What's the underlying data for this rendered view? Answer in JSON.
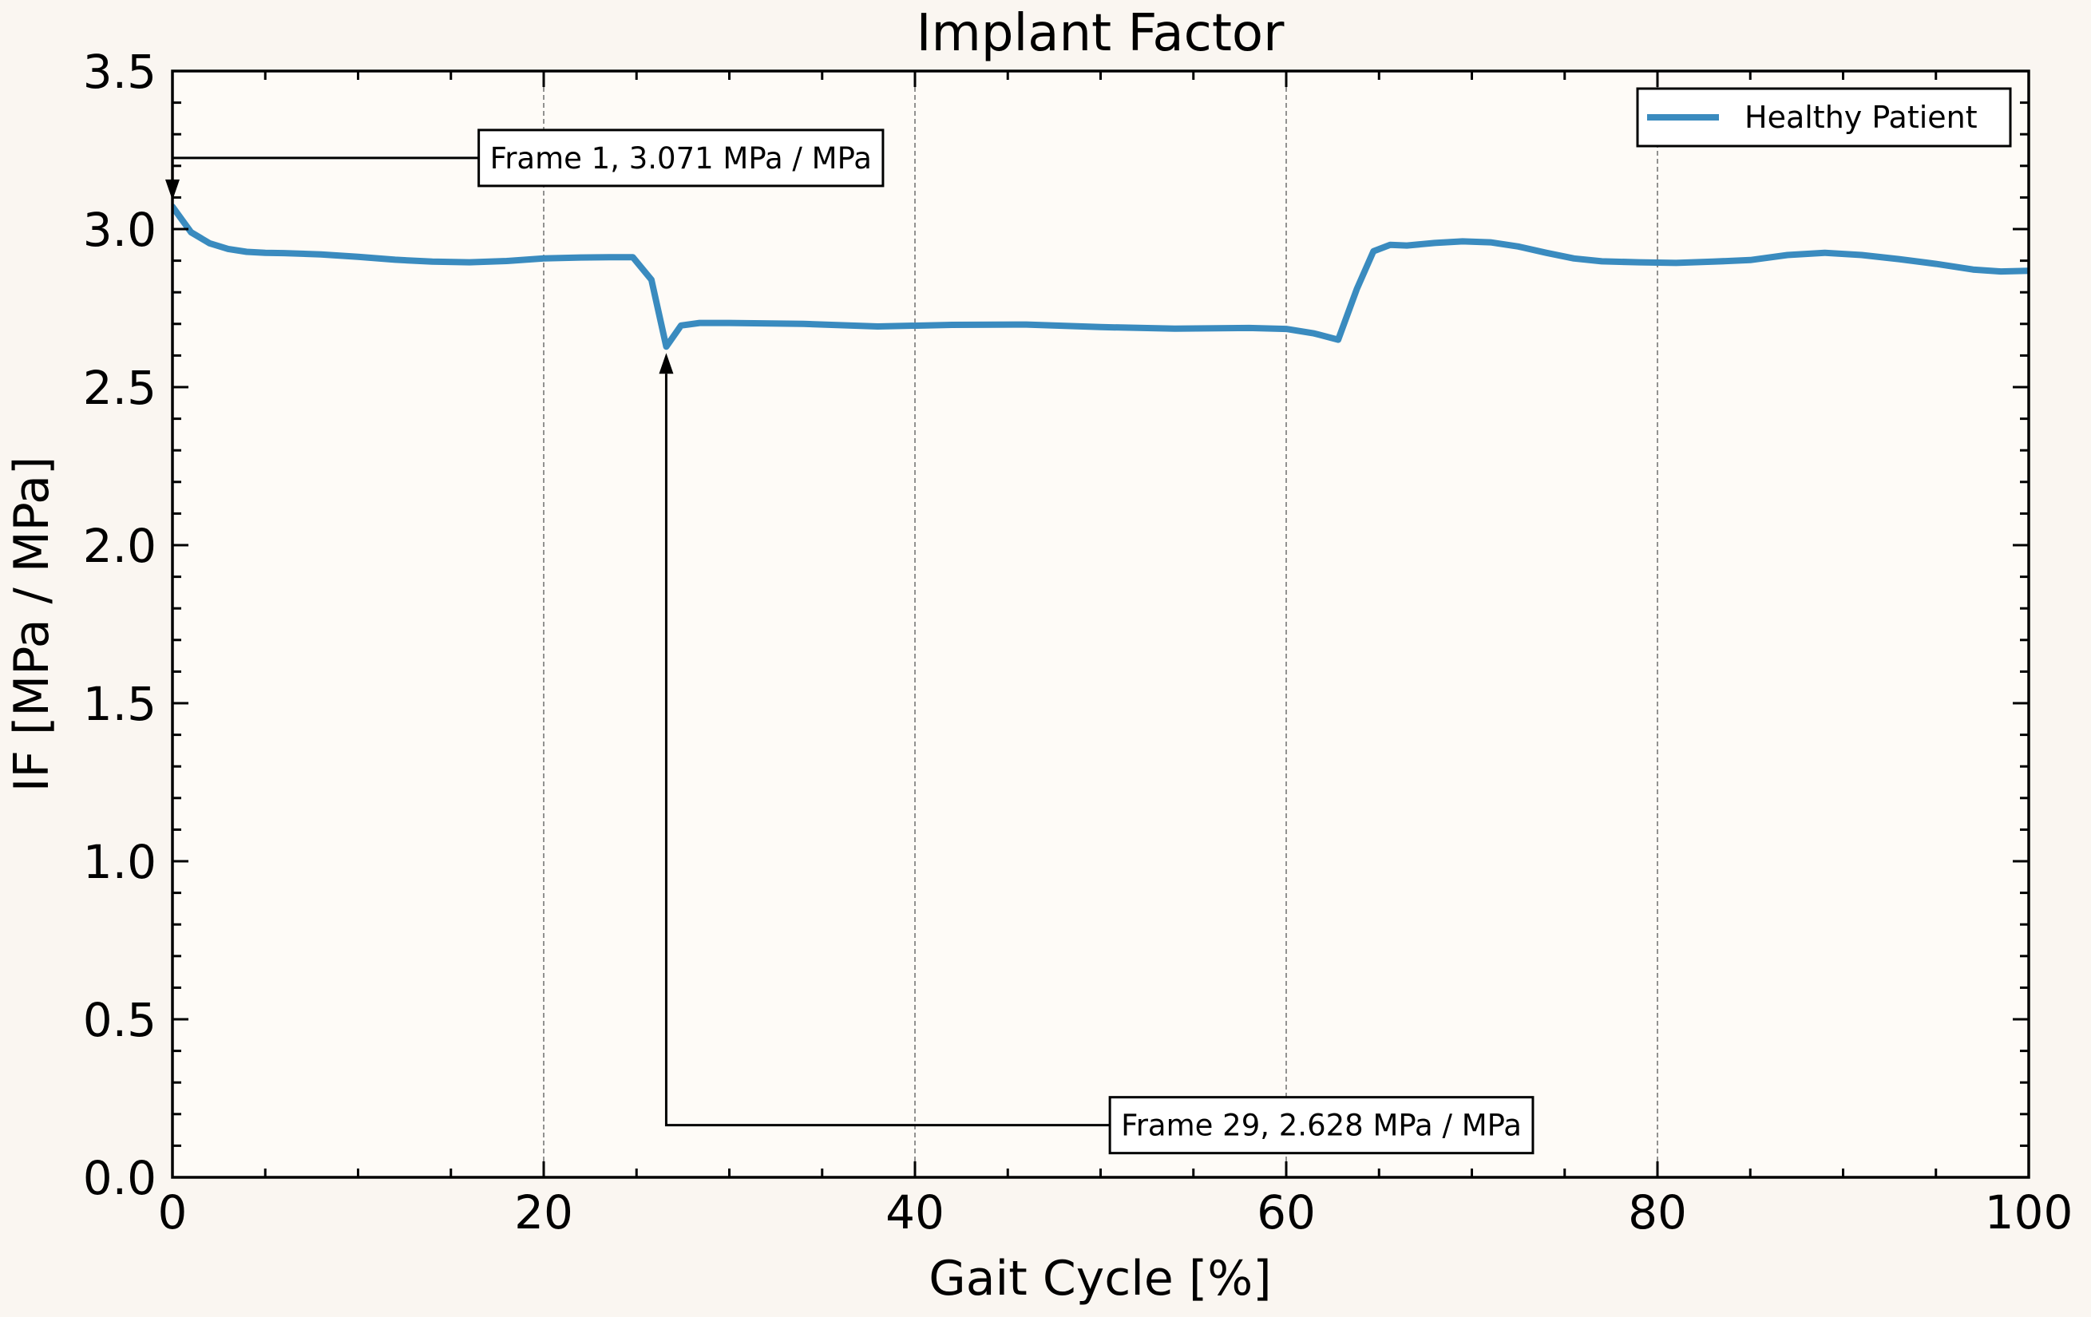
{
  "chart_data": {
    "type": "line",
    "title": "Implant Factor",
    "xlabel": "Gait Cycle [%]",
    "ylabel": "IF [MPa / MPa]",
    "xlim": [
      0,
      100
    ],
    "ylim": [
      0,
      3.5
    ],
    "xticks": [
      "0",
      "20",
      "40",
      "60",
      "80",
      "100"
    ],
    "yticks": [
      "0.0",
      "0.5",
      "1.0",
      "1.5",
      "2.0",
      "2.5",
      "3.0",
      "3.5"
    ],
    "grid": "vertical dashed at major x ticks",
    "legend_position": "top-right",
    "colors": {
      "series": "#3a8bbf",
      "background": "#faf6f1",
      "plot_background": "#fefbf7"
    },
    "series": [
      {
        "name": "Healthy Patient",
        "x": [
          0,
          1,
          2,
          3,
          4,
          5,
          6,
          8,
          10,
          12,
          14,
          16,
          18,
          20,
          22,
          24,
          24.8,
          25.8,
          26.6,
          27.4,
          28.4,
          30,
          34,
          38,
          42,
          46,
          50,
          54,
          58,
          60,
          61.5,
          62.8,
          63.8,
          64.7,
          65.6,
          66.5,
          68,
          69.5,
          71,
          72.5,
          74,
          75.5,
          77,
          79,
          81,
          83,
          85,
          87,
          89,
          91,
          93,
          95,
          97,
          98.5,
          100
        ],
        "y": [
          3.071,
          2.99,
          2.955,
          2.937,
          2.928,
          2.925,
          2.924,
          2.92,
          2.912,
          2.903,
          2.897,
          2.895,
          2.899,
          2.907,
          2.91,
          2.911,
          2.911,
          2.84,
          2.628,
          2.695,
          2.703,
          2.703,
          2.7,
          2.692,
          2.697,
          2.698,
          2.69,
          2.685,
          2.687,
          2.684,
          2.67,
          2.65,
          2.81,
          2.93,
          2.95,
          2.948,
          2.956,
          2.961,
          2.958,
          2.945,
          2.925,
          2.907,
          2.898,
          2.895,
          2.893,
          2.897,
          2.902,
          2.918,
          2.925,
          2.918,
          2.905,
          2.89,
          2.872,
          2.866,
          2.868
        ]
      }
    ],
    "annotations": [
      {
        "text": "Frame 1, 3.071 MPa / MPa",
        "x": 0,
        "y": 3.071,
        "text_x": 16.5,
        "text_y": 3.225
      },
      {
        "text": "Frame 29, 2.628 MPa / MPa",
        "x": 26.6,
        "y": 2.628,
        "text_x": 50.5,
        "text_y": 0.165
      }
    ]
  }
}
